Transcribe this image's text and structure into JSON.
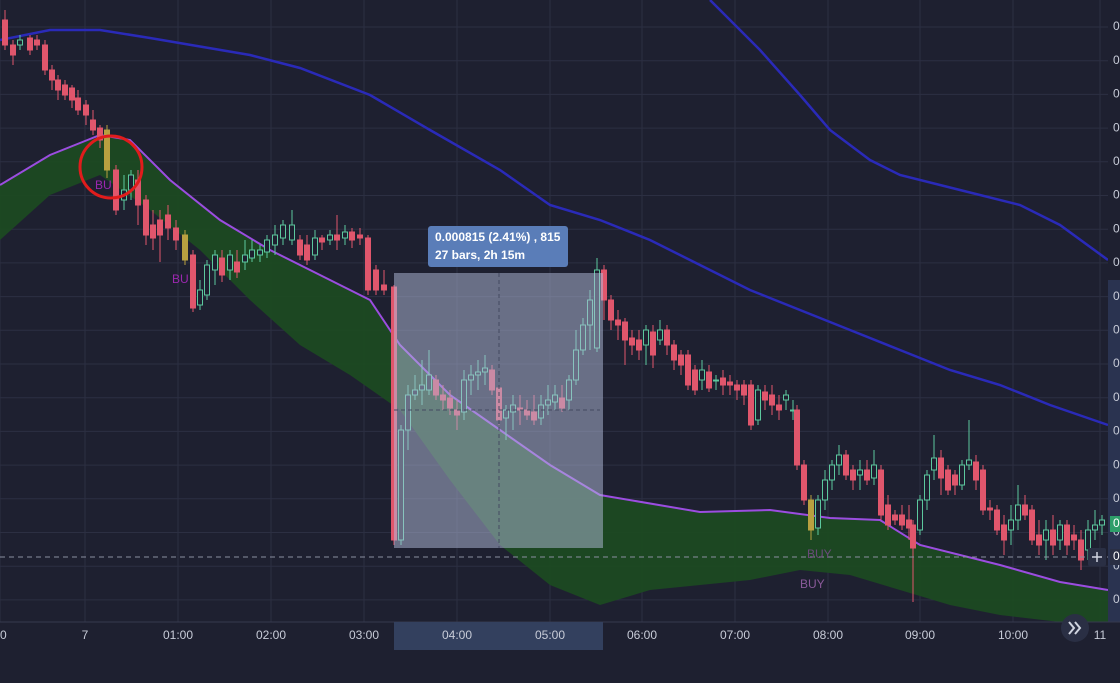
{
  "tooltip": {
    "line1": "0.000815 (2.41%) , 815",
    "line2": "27 bars, 2h 15m"
  },
  "x_axis": [
    "0",
    "7",
    "01:00",
    "02:00",
    "03:00",
    "04:00",
    "05:00",
    "06:00",
    "07:00",
    "08:00",
    "09:00",
    "10:00",
    "11"
  ],
  "y_axis": [
    "0",
    "0",
    "0",
    "0",
    "0",
    "0",
    "0",
    "0",
    "0",
    "0",
    "0",
    "0",
    "0",
    "0",
    "0",
    "0",
    "0",
    "0",
    "0"
  ],
  "markers": [
    "BU",
    "BU",
    "BUY",
    "BUY"
  ],
  "price_badges": [
    "0",
    "0"
  ]
}
